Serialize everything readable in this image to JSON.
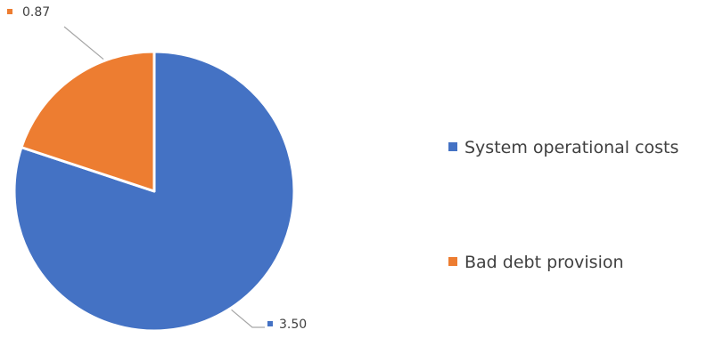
{
  "chart_data": {
    "type": "pie",
    "title": "",
    "categories": [
      "System operational costs",
      "Bad debt provision"
    ],
    "values": [
      3.5,
      0.87
    ],
    "data_labels": [
      "3.50",
      "0.87"
    ],
    "colors": [
      "#4472C4",
      "#ED7D31"
    ],
    "start_angle": "12 o'clock",
    "direction": "clockwise",
    "legend_position": "right"
  }
}
